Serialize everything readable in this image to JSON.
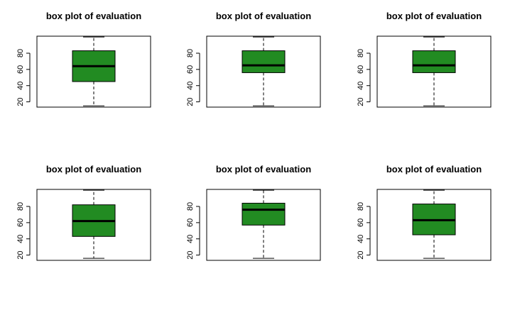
{
  "chart_data": [
    {
      "type": "box",
      "title": "box plot of evaluation",
      "xlabel": "",
      "ylabel": "",
      "ylim": [
        13.5,
        101
      ],
      "yticks": [
        20,
        40,
        60,
        80
      ],
      "ytick_labels": [
        "20",
        "40",
        "60",
        "80"
      ],
      "box": {
        "min": 15,
        "q1": 45,
        "median": 64,
        "q3": 83,
        "max": 100
      },
      "fill": "#228b22"
    },
    {
      "type": "box",
      "title": "box plot of evaluation",
      "xlabel": "",
      "ylabel": "",
      "ylim": [
        13.5,
        101
      ],
      "yticks": [
        20,
        40,
        60,
        80
      ],
      "ytick_labels": [
        "20",
        "40",
        "60",
        "80"
      ],
      "box": {
        "min": 15,
        "q1": 56,
        "median": 65,
        "q3": 83,
        "max": 100
      },
      "fill": "#228b22"
    },
    {
      "type": "box",
      "title": "box plot of evaluation",
      "xlabel": "",
      "ylabel": "",
      "ylim": [
        13.5,
        101
      ],
      "yticks": [
        20,
        40,
        60,
        80
      ],
      "ytick_labels": [
        "20",
        "40",
        "60",
        "80"
      ],
      "box": {
        "min": 15,
        "q1": 56,
        "median": 65,
        "q3": 83,
        "max": 100
      },
      "fill": "#228b22"
    },
    {
      "type": "box",
      "title": "box plot of evaluation",
      "xlabel": "",
      "ylabel": "",
      "ylim": [
        13.5,
        101
      ],
      "yticks": [
        20,
        40,
        60,
        80
      ],
      "ytick_labels": [
        "20",
        "40",
        "60",
        "80"
      ],
      "box": {
        "min": 16,
        "q1": 43,
        "median": 62,
        "q3": 82,
        "max": 100
      },
      "fill": "#228b22"
    },
    {
      "type": "box",
      "title": "box plot of evaluation",
      "xlabel": "",
      "ylabel": "",
      "ylim": [
        13.5,
        101
      ],
      "yticks": [
        20,
        40,
        60,
        80
      ],
      "ytick_labels": [
        "20",
        "40",
        "60",
        "80"
      ],
      "box": {
        "min": 16,
        "q1": 57,
        "median": 76,
        "q3": 84,
        "max": 100
      },
      "fill": "#228b22"
    },
    {
      "type": "box",
      "title": "box plot of evaluation",
      "xlabel": "",
      "ylabel": "",
      "ylim": [
        13.5,
        101
      ],
      "yticks": [
        20,
        40,
        60,
        80
      ],
      "ytick_labels": [
        "20",
        "40",
        "60",
        "80"
      ],
      "box": {
        "min": 16,
        "q1": 45,
        "median": 63,
        "q3": 83,
        "max": 100
      },
      "fill": "#228b22"
    }
  ]
}
